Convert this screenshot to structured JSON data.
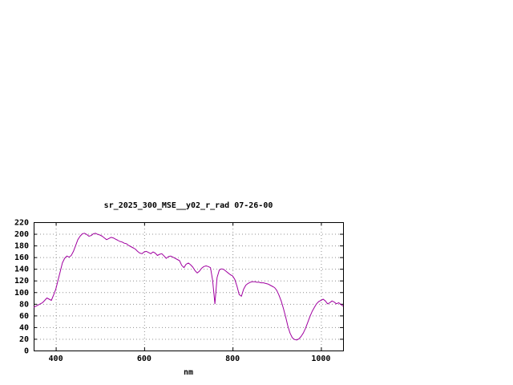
{
  "page": {
    "background": "#ffffff"
  },
  "chart_data": {
    "type": "line",
    "title": "sr_2025_300_MSE__y02_r_rad 07-26-00",
    "xlabel": "nm",
    "ylabel": "",
    "xlim": [
      350,
      1050
    ],
    "ylim": [
      0,
      220
    ],
    "x_ticks": [
      400,
      600,
      800,
      1000
    ],
    "y_ticks": [
      0,
      20,
      40,
      60,
      80,
      100,
      120,
      140,
      160,
      180,
      200,
      220
    ],
    "grid": true,
    "legend": "none",
    "line_color": "#a000a0",
    "grid_color": "#909090",
    "border_color": "#000000",
    "series": [
      {
        "name": "sr_2025_300_MSE__y02_r_rad",
        "x": [
          350,
          355,
          360,
          365,
          370,
          375,
          380,
          385,
          390,
          395,
          400,
          405,
          410,
          415,
          420,
          425,
          430,
          435,
          440,
          445,
          450,
          455,
          460,
          465,
          470,
          475,
          480,
          485,
          490,
          495,
          500,
          505,
          510,
          515,
          520,
          525,
          530,
          535,
          540,
          545,
          550,
          555,
          560,
          565,
          570,
          575,
          580,
          585,
          590,
          595,
          600,
          605,
          610,
          615,
          620,
          625,
          630,
          635,
          640,
          645,
          650,
          655,
          660,
          665,
          670,
          675,
          680,
          685,
          690,
          695,
          700,
          705,
          710,
          715,
          720,
          725,
          730,
          735,
          740,
          745,
          750,
          755,
          760,
          765,
          770,
          775,
          780,
          785,
          790,
          795,
          800,
          805,
          810,
          815,
          820,
          825,
          830,
          835,
          840,
          845,
          850,
          855,
          860,
          865,
          870,
          875,
          880,
          885,
          890,
          895,
          900,
          905,
          910,
          915,
          920,
          925,
          930,
          935,
          940,
          945,
          950,
          955,
          960,
          965,
          970,
          975,
          980,
          985,
          990,
          995,
          1000,
          1005,
          1010,
          1015,
          1020,
          1025,
          1030,
          1035,
          1040,
          1045,
          1050
        ],
        "y": [
          74,
          76,
          78,
          80,
          82,
          86,
          90,
          88,
          86,
          95,
          105,
          120,
          135,
          150,
          158,
          162,
          160,
          163,
          170,
          180,
          190,
          196,
          200,
          201,
          199,
          196,
          197,
          200,
          201,
          199,
          198,
          196,
          193,
          190,
          192,
          194,
          193,
          191,
          189,
          187,
          186,
          184,
          183,
          180,
          178,
          176,
          174,
          170,
          167,
          166,
          169,
          170,
          168,
          166,
          169,
          167,
          163,
          165,
          166,
          162,
          158,
          161,
          162,
          160,
          158,
          156,
          154,
          146,
          142,
          148,
          150,
          147,
          143,
          137,
          133,
          136,
          141,
          144,
          145,
          144,
          142,
          120,
          80,
          125,
          138,
          140,
          139,
          136,
          133,
          130,
          128,
          122,
          110,
          96,
          93,
          105,
          112,
          115,
          117,
          118,
          118,
          117,
          117,
          116,
          116,
          115,
          114,
          112,
          110,
          108,
          103,
          95,
          85,
          72,
          58,
          42,
          30,
          22,
          19,
          18,
          20,
          24,
          30,
          38,
          48,
          58,
          67,
          74,
          80,
          84,
          86,
          88,
          85,
          80,
          82,
          85,
          83,
          80,
          82,
          79,
          76
        ]
      }
    ]
  }
}
